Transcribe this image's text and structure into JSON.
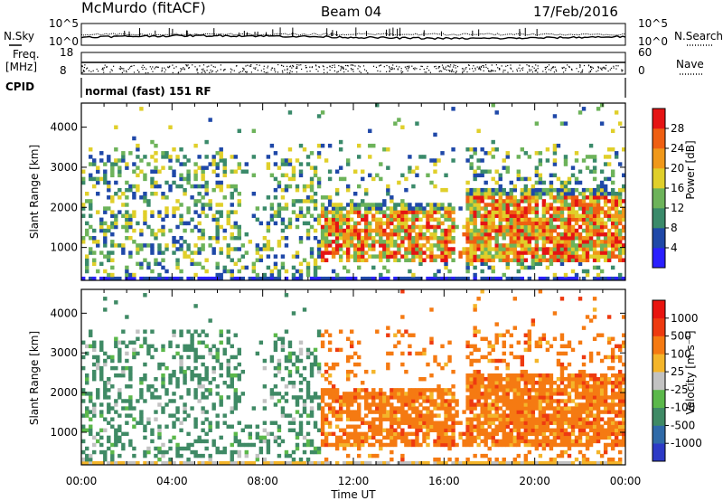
{
  "header": {
    "station": "McMurdo (fitACF)",
    "beam": "Beam 04",
    "date": "17/Feb/2016"
  },
  "status_panel": {
    "nsky_label": "N.Sky",
    "nsky_ticks": [
      "10^5",
      "10^0"
    ],
    "nsearch_label": "N.Search",
    "nsearch_ticks": [
      "10^5",
      "10^0"
    ],
    "freq_label": "Freq.",
    "freq_unit": "[MHz]",
    "freq_ticks": [
      "18",
      "8"
    ],
    "nave_label": "Nave",
    "nave_ticks": [
      "60",
      "0"
    ],
    "cpid_label": "CPID",
    "cpid_value": "normal (fast) 151 RF"
  },
  "chart_data": [
    {
      "type": "heatmap",
      "name": "power",
      "ylabel": "Slant Range [km]",
      "yticks": [
        "1000",
        "2000",
        "3000",
        "4000"
      ],
      "ylim": [
        180,
        4600
      ],
      "xlim_hours": [
        0,
        24
      ],
      "colorbar": {
        "label": "Power [dB]",
        "ticks": [
          "4",
          "8",
          "12",
          "16",
          "20",
          "24",
          "28"
        ],
        "colors": [
          "#2a1fff",
          "#1f48a8",
          "#3a8a6a",
          "#6db35a",
          "#e0cf2a",
          "#f0981a",
          "#ef5f12",
          "#e51414"
        ]
      }
    },
    {
      "type": "heatmap",
      "name": "velocity",
      "ylabel": "Slant Range [km]",
      "yticks": [
        "1000",
        "2000",
        "3000",
        "4000"
      ],
      "ylim": [
        180,
        4600
      ],
      "xlim_hours": [
        0,
        24
      ],
      "xlabel": "Time UT",
      "xticks": [
        "00:00",
        "04:00",
        "08:00",
        "12:00",
        "16:00",
        "20:00",
        "00:00"
      ],
      "colorbar": {
        "label": "Velocity [m s⁻¹]",
        "ticks": [
          "1000",
          "500",
          "100",
          "25",
          "-25",
          "-100",
          "-500",
          "-1000"
        ],
        "colors": [
          "#2d3ac6",
          "#2f6aa8",
          "#3f8a65",
          "#5bb84a",
          "#c2c2c2",
          "#f4b52a",
          "#f57a12",
          "#ee3a10",
          "#e8140f"
        ]
      }
    }
  ]
}
